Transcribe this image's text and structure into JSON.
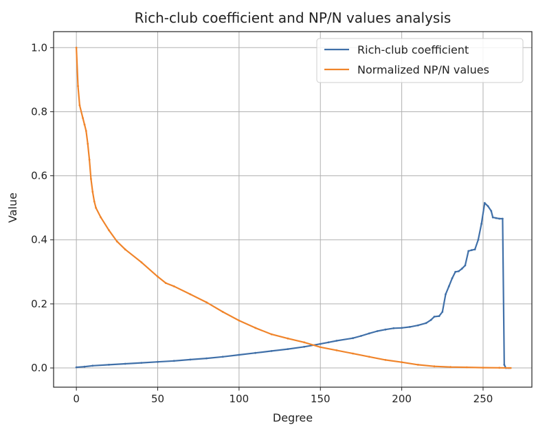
{
  "chart_data": {
    "type": "line",
    "title": "Rich-club coefficient and NP/N values analysis",
    "xlabel": "Degree",
    "ylabel": "Value",
    "xlim": [
      -14,
      280
    ],
    "ylim": [
      -0.06,
      1.05
    ],
    "xticks": [
      0,
      50,
      100,
      150,
      200,
      250
    ],
    "yticks": [
      0.0,
      0.2,
      0.4,
      0.6,
      0.8,
      1.0
    ],
    "xtick_labels": [
      "0",
      "50",
      "100",
      "150",
      "200",
      "250"
    ],
    "ytick_labels": [
      "0.0",
      "0.2",
      "0.4",
      "0.6",
      "0.8",
      "1.0"
    ],
    "grid": true,
    "legend_position": "top-right",
    "series": [
      {
        "name": "Rich-club coefficient",
        "color": "#3f6fa8",
        "points": [
          [
            0,
            0.002
          ],
          [
            5,
            0.004
          ],
          [
            10,
            0.007
          ],
          [
            20,
            0.01
          ],
          [
            30,
            0.013
          ],
          [
            40,
            0.016
          ],
          [
            50,
            0.019
          ],
          [
            60,
            0.022
          ],
          [
            70,
            0.026
          ],
          [
            80,
            0.03
          ],
          [
            90,
            0.035
          ],
          [
            100,
            0.041
          ],
          [
            110,
            0.047
          ],
          [
            120,
            0.053
          ],
          [
            130,
            0.059
          ],
          [
            140,
            0.066
          ],
          [
            150,
            0.075
          ],
          [
            155,
            0.08
          ],
          [
            160,
            0.085
          ],
          [
            170,
            0.093
          ],
          [
            175,
            0.1
          ],
          [
            180,
            0.108
          ],
          [
            185,
            0.115
          ],
          [
            190,
            0.12
          ],
          [
            195,
            0.124
          ],
          [
            200,
            0.125
          ],
          [
            205,
            0.128
          ],
          [
            210,
            0.133
          ],
          [
            215,
            0.14
          ],
          [
            218,
            0.15
          ],
          [
            220,
            0.16
          ],
          [
            223,
            0.162
          ],
          [
            225,
            0.175
          ],
          [
            227,
            0.23
          ],
          [
            229,
            0.255
          ],
          [
            231,
            0.28
          ],
          [
            233,
            0.3
          ],
          [
            235,
            0.302
          ],
          [
            237,
            0.31
          ],
          [
            239,
            0.32
          ],
          [
            241,
            0.365
          ],
          [
            243,
            0.368
          ],
          [
            245,
            0.37
          ],
          [
            247,
            0.4
          ],
          [
            249,
            0.45
          ],
          [
            251,
            0.515
          ],
          [
            253,
            0.505
          ],
          [
            255,
            0.49
          ],
          [
            256,
            0.47
          ],
          [
            258,
            0.468
          ],
          [
            260,
            0.466
          ],
          [
            262,
            0.466
          ],
          [
            263,
            0.01
          ],
          [
            264,
            0.0
          ],
          [
            266,
            0.0
          ]
        ]
      },
      {
        "name": "Normalized NP/N values",
        "color": "#f0842a",
        "points": [
          [
            0,
            1.0
          ],
          [
            1,
            0.88
          ],
          [
            2,
            0.82
          ],
          [
            4,
            0.78
          ],
          [
            5,
            0.76
          ],
          [
            6,
            0.74
          ],
          [
            7,
            0.7
          ],
          [
            8,
            0.65
          ],
          [
            9,
            0.59
          ],
          [
            10,
            0.55
          ],
          [
            11,
            0.52
          ],
          [
            12,
            0.5
          ],
          [
            15,
            0.47
          ],
          [
            20,
            0.43
          ],
          [
            25,
            0.395
          ],
          [
            30,
            0.37
          ],
          [
            40,
            0.33
          ],
          [
            50,
            0.285
          ],
          [
            55,
            0.265
          ],
          [
            60,
            0.255
          ],
          [
            70,
            0.23
          ],
          [
            80,
            0.205
          ],
          [
            90,
            0.175
          ],
          [
            100,
            0.148
          ],
          [
            110,
            0.125
          ],
          [
            120,
            0.105
          ],
          [
            130,
            0.092
          ],
          [
            140,
            0.08
          ],
          [
            150,
            0.065
          ],
          [
            160,
            0.055
          ],
          [
            170,
            0.045
          ],
          [
            180,
            0.035
          ],
          [
            190,
            0.025
          ],
          [
            200,
            0.018
          ],
          [
            210,
            0.01
          ],
          [
            220,
            0.005
          ],
          [
            230,
            0.003
          ],
          [
            240,
            0.002
          ],
          [
            250,
            0.001
          ],
          [
            260,
            0.0005
          ],
          [
            267,
            0.0
          ]
        ]
      }
    ]
  }
}
